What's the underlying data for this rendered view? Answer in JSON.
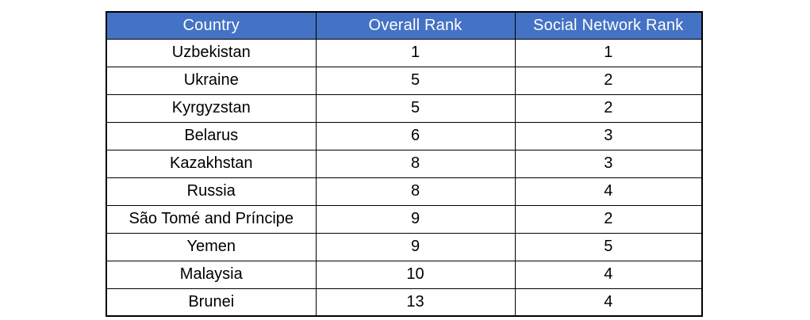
{
  "chart_data": {
    "type": "table",
    "columns": [
      "Country",
      "Overall Rank",
      "Social Network Rank"
    ],
    "rows": [
      [
        "Uzbekistan",
        "1",
        "1"
      ],
      [
        "Ukraine",
        "5",
        "2"
      ],
      [
        "Kyrgyzstan",
        "5",
        "2"
      ],
      [
        "Belarus",
        "6",
        "3"
      ],
      [
        "Kazakhstan",
        "8",
        "3"
      ],
      [
        "Russia",
        "8",
        "4"
      ],
      [
        "São Tomé and Príncipe",
        "9",
        "2"
      ],
      [
        "Yemen",
        "9",
        "5"
      ],
      [
        "Malaysia",
        "10",
        "4"
      ],
      [
        "Brunei",
        "13",
        "4"
      ]
    ]
  },
  "colors": {
    "header_bg": "#4472C4",
    "header_text": "#FFFFFF",
    "body_text": "#000000",
    "border": "#000000",
    "row_bg": "#FFFFFF"
  }
}
